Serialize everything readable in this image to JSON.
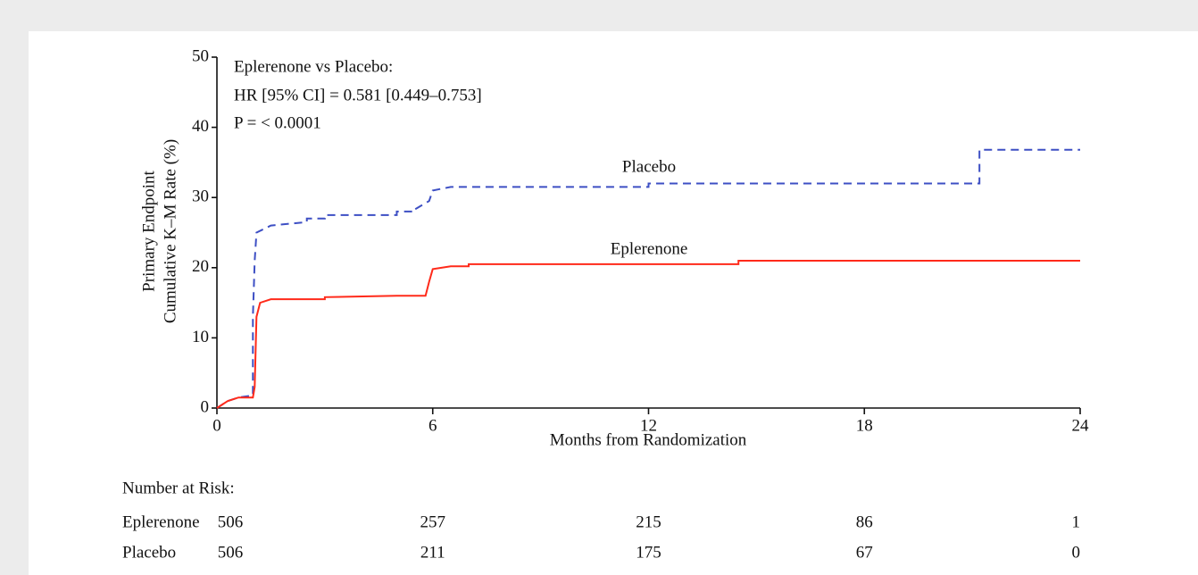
{
  "chart_data": {
    "type": "line",
    "step": true,
    "ylabel": [
      "Primary Endpoint",
      "Cumulative K–M Rate (%)"
    ],
    "xlabel": "Months from Randomization",
    "annotations": [
      "Eplerenone vs Placebo:",
      "HR [95% CI] = 0.581 [0.449–0.753]",
      "P = < 0.0001"
    ],
    "xlim": [
      0,
      24
    ],
    "ylim": [
      0,
      50
    ],
    "xticks": [
      0,
      6,
      12,
      18,
      24
    ],
    "yticks": [
      0,
      10,
      20,
      30,
      40,
      50
    ],
    "series": [
      {
        "name": "Placebo",
        "color": "#3d4fc4",
        "dash": true,
        "x": [
          0,
          0.3,
          0.3,
          0.6,
          0.6,
          1.0,
          1.0,
          1.05,
          1.1,
          1.3,
          1.5,
          2.5,
          2.5,
          3.0,
          3.0,
          5.0,
          5.0,
          5.5,
          5.5,
          5.9,
          6.0,
          6.5,
          12.0,
          12.0,
          21.2,
          21.2,
          24
        ],
        "values": [
          0,
          1,
          1,
          1.5,
          1.5,
          1.8,
          13,
          21,
          25,
          25.5,
          26,
          26.5,
          27,
          27,
          27.5,
          27.5,
          28,
          28,
          28.3,
          29.5,
          31,
          31.5,
          31.5,
          32,
          32,
          36.8,
          36.8
        ]
      },
      {
        "name": "Eplerenone",
        "color": "#ff2a1a",
        "dash": false,
        "x": [
          0,
          0.3,
          0.3,
          0.6,
          0.6,
          1.0,
          1.05,
          1.1,
          1.2,
          1.5,
          3.0,
          3.0,
          5.0,
          5.8,
          5.9,
          6.0,
          6.5,
          7.0,
          7.0,
          14.5,
          14.5,
          24
        ],
        "values": [
          0,
          1,
          1,
          1.5,
          1.5,
          1.5,
          3,
          13,
          15,
          15.5,
          15.5,
          15.8,
          16,
          16,
          18,
          19.8,
          20.2,
          20.2,
          20.5,
          20.5,
          21,
          21
        ]
      }
    ],
    "risk_table": {
      "title": "Number at Risk:",
      "rows": [
        {
          "label": "Eplerenone",
          "values": [
            506,
            257,
            215,
            86,
            1
          ]
        },
        {
          "label": "Placebo",
          "values": [
            506,
            211,
            175,
            67,
            0
          ]
        }
      ]
    }
  }
}
